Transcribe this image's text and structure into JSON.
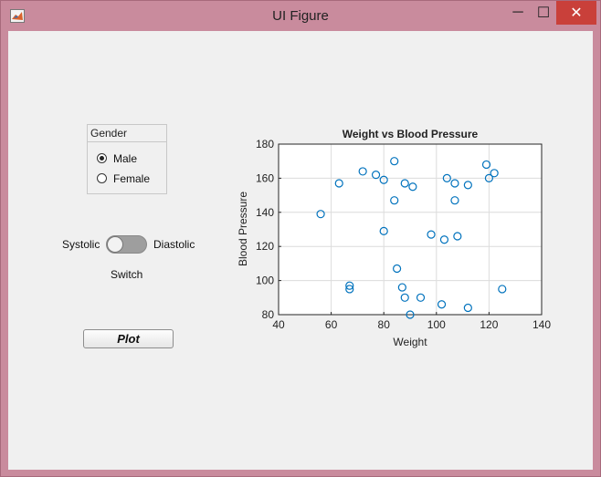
{
  "window": {
    "title": "UI Figure",
    "icon": "matlab-logo-icon",
    "controls": {
      "minimize": "─",
      "maximize": "☐",
      "close": "✕"
    }
  },
  "gender_panel": {
    "title": "Gender",
    "options": [
      {
        "label": "Male",
        "selected": true
      },
      {
        "label": "Female",
        "selected": false
      }
    ]
  },
  "switch": {
    "left_label": "Systolic",
    "right_label": "Diastolic",
    "caption": "Switch",
    "state": "Systolic"
  },
  "plot_button": {
    "label": "Plot"
  },
  "colors": {
    "marker": "#0072bd",
    "title_bar": "#c98b9d",
    "close_button": "#c9403a"
  },
  "chart_data": {
    "type": "scatter",
    "title": "Weight vs Blood Pressure",
    "xlabel": "Weight",
    "ylabel": "Blood Pressure",
    "xlim": [
      40,
      140
    ],
    "ylim": [
      80,
      180
    ],
    "xticks": [
      40,
      60,
      80,
      100,
      120,
      140
    ],
    "yticks": [
      80,
      100,
      120,
      140,
      160,
      180
    ],
    "grid": true,
    "series": [
      {
        "marker": "circle-open",
        "points": [
          [
            56,
            139
          ],
          [
            63,
            157
          ],
          [
            67,
            97
          ],
          [
            67,
            95
          ],
          [
            72,
            164
          ],
          [
            77,
            162
          ],
          [
            80,
            159
          ],
          [
            80,
            129
          ],
          [
            84,
            147
          ],
          [
            84,
            170
          ],
          [
            85,
            107
          ],
          [
            87,
            96
          ],
          [
            88,
            157
          ],
          [
            88,
            90
          ],
          [
            90,
            80
          ],
          [
            91,
            155
          ],
          [
            94,
            90
          ],
          [
            98,
            127
          ],
          [
            102,
            86
          ],
          [
            103,
            124
          ],
          [
            104,
            160
          ],
          [
            107,
            147
          ],
          [
            107,
            157
          ],
          [
            108,
            126
          ],
          [
            112,
            156
          ],
          [
            112,
            84
          ],
          [
            119,
            168
          ],
          [
            120,
            160
          ],
          [
            122,
            163
          ],
          [
            125,
            95
          ]
        ]
      }
    ]
  }
}
